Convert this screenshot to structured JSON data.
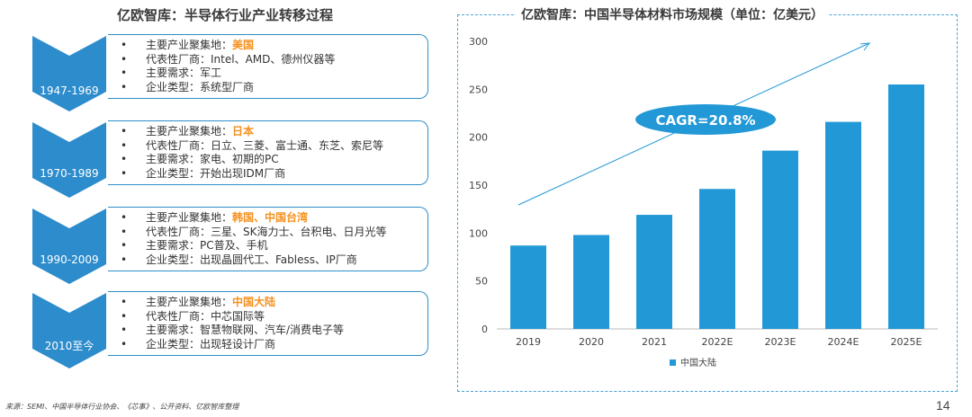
{
  "left": {
    "title": "亿欧智库：半导体行业产业转移过程",
    "eras": [
      {
        "period": "1947-1969",
        "lines": [
          {
            "prefix": "主要产业聚集地：",
            "highlight": "美国"
          },
          {
            "prefix": "代表性厂商：Intel、AMD、德州仪器等",
            "highlight": ""
          },
          {
            "prefix": "主要需求：军工",
            "highlight": ""
          },
          {
            "prefix": "企业类型：系统型厂商",
            "highlight": ""
          }
        ]
      },
      {
        "period": "1970-1989",
        "lines": [
          {
            "prefix": "主要产业聚集地：",
            "highlight": "日本"
          },
          {
            "prefix": "代表性厂商：日立、三菱、富士通、东芝、索尼等",
            "highlight": ""
          },
          {
            "prefix": "主要需求：家电、初期的PC",
            "highlight": ""
          },
          {
            "prefix": "企业类型：开始出现IDM厂商",
            "highlight": ""
          }
        ]
      },
      {
        "period": "1990-2009",
        "lines": [
          {
            "prefix": "主要产业聚集地：",
            "highlight": "韩国、中国台湾"
          },
          {
            "prefix": "代表性厂商：三星、SK海力士、台积电、日月光等",
            "highlight": ""
          },
          {
            "prefix": "主要需求：PC普及、手机",
            "highlight": ""
          },
          {
            "prefix": "企业类型：出现晶圆代工、Fabless、IP厂商",
            "highlight": ""
          }
        ]
      },
      {
        "period": "2010至今",
        "lines": [
          {
            "prefix": "主要产业聚集地：",
            "highlight": "中国大陆"
          },
          {
            "prefix": "代表性厂商：中芯国际等",
            "highlight": ""
          },
          {
            "prefix": "主要需求：智慧物联网、汽车/消费电子等",
            "highlight": ""
          },
          {
            "prefix": "企业类型：出现轻设计厂商",
            "highlight": ""
          }
        ]
      }
    ]
  },
  "chart_data": {
    "type": "bar",
    "title": "亿欧智库：中国半导体材料市场规模（单位：亿美元）",
    "categories": [
      "2019",
      "2020",
      "2021",
      "2022E",
      "2023E",
      "2024E",
      "2025E"
    ],
    "series": [
      {
        "name": "中国大陆",
        "values": [
          87,
          98,
          119,
          146,
          186,
          216,
          255
        ]
      }
    ],
    "ylim": [
      0,
      300
    ],
    "yticks": [
      0,
      50,
      100,
      150,
      200,
      250,
      300
    ],
    "xlabel": "",
    "ylabel": "",
    "legend": "bottom",
    "grid": false,
    "annotation": "CAGR=20.8%",
    "bar_color": "#2299d6"
  },
  "footer": {
    "source": "来源：SEMI、中国半导体行业协会、《芯事》、公开资料、亿欧智库整理",
    "page": "14"
  }
}
